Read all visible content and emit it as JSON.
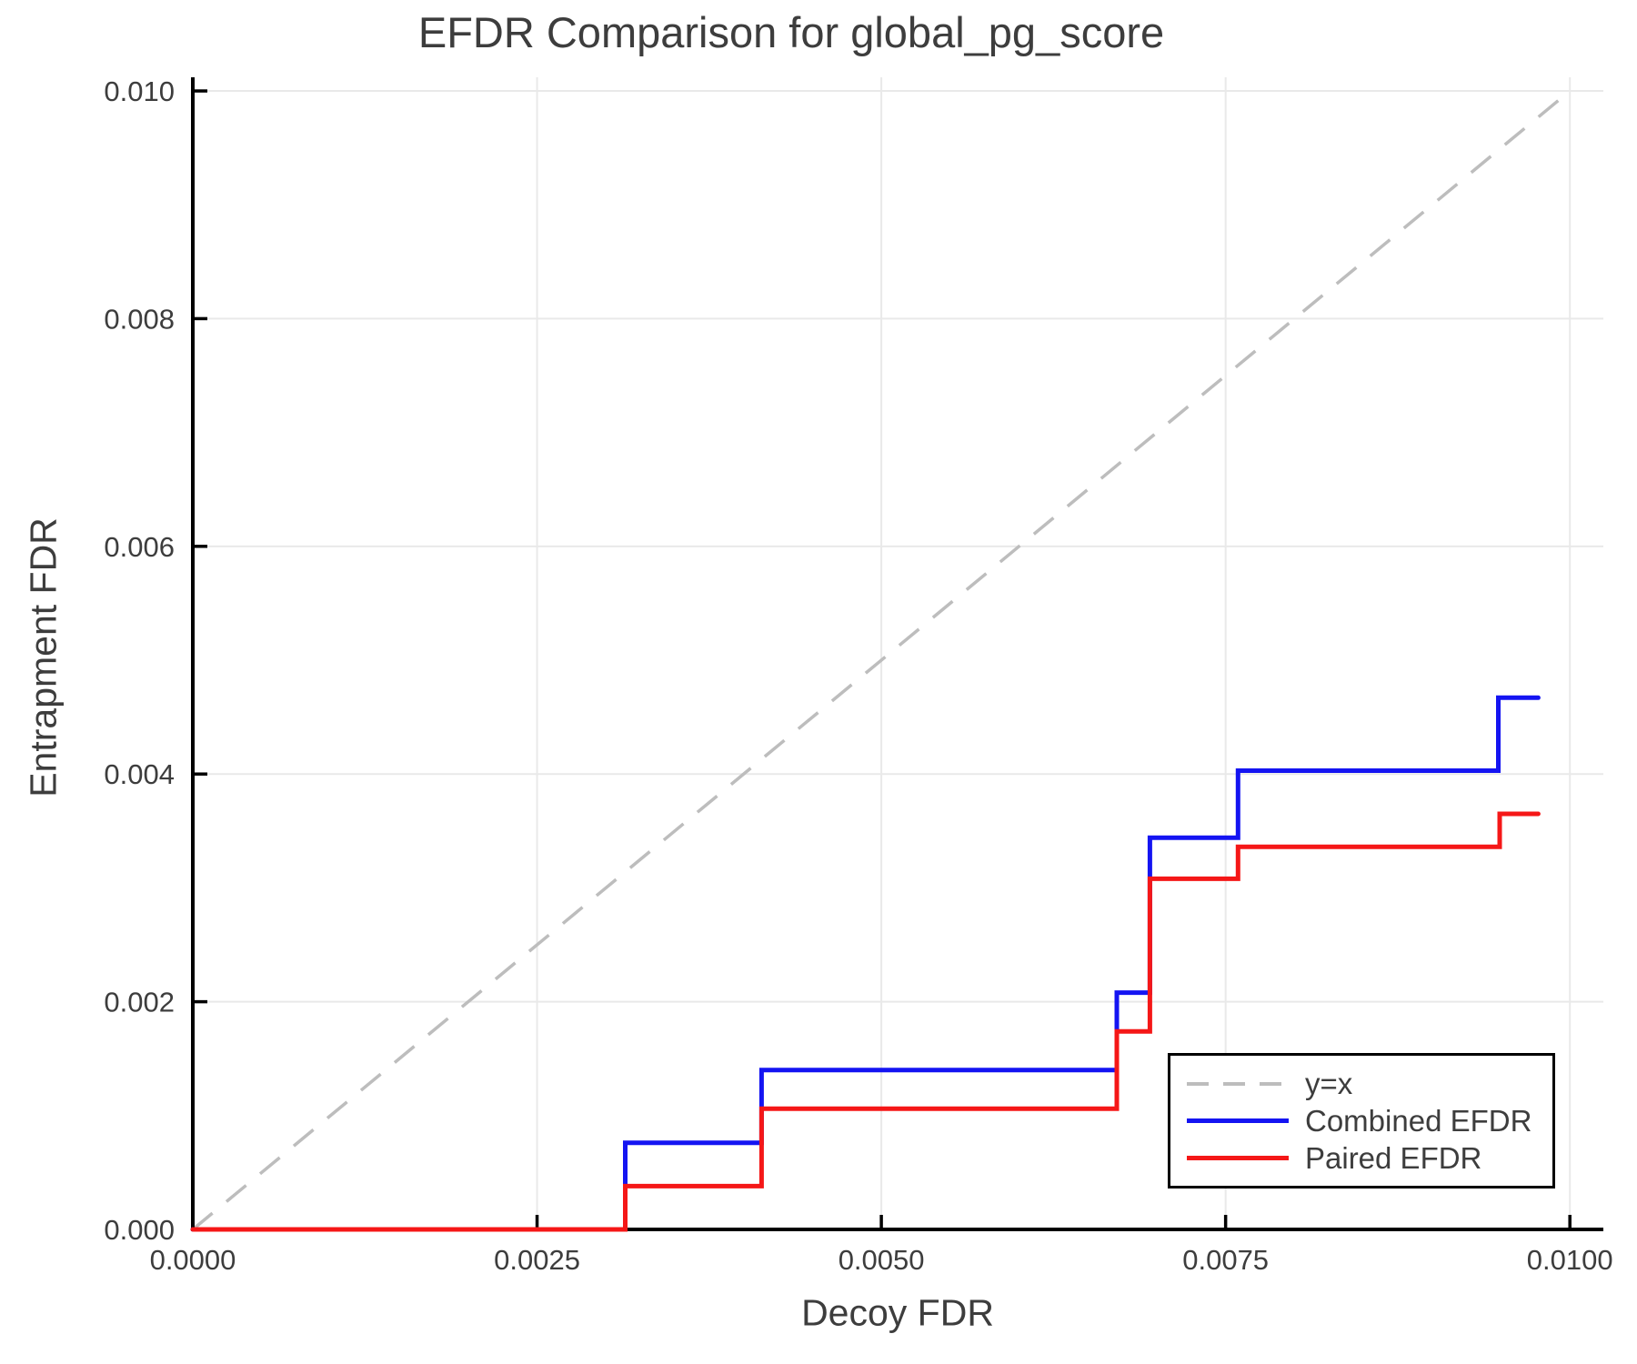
{
  "chart_data": {
    "type": "line",
    "subtype": "step-post",
    "title": "EFDR Comparison for global_pg_score",
    "xlabel": "Decoy FDR",
    "ylabel": "Entrapment FDR",
    "xlim": [
      0.0,
      0.01
    ],
    "ylim": [
      0.0,
      0.01
    ],
    "grid": true,
    "x_ticks": {
      "values": [
        0.0,
        0.0025,
        0.005,
        0.0075,
        0.01
      ],
      "labels": [
        "0.0000",
        "0.0025",
        "0.0050",
        "0.0075",
        "0.0100"
      ]
    },
    "y_ticks": {
      "values": [
        0.0,
        0.002,
        0.004,
        0.006,
        0.008,
        0.01
      ],
      "labels": [
        "0.000",
        "0.002",
        "0.004",
        "0.006",
        "0.008",
        "0.010"
      ]
    },
    "reference_line": {
      "label": "y=x",
      "points": [
        [
          0.0,
          0.0
        ],
        [
          0.01,
          0.01
        ]
      ],
      "style": "dashed",
      "color": "#bdbdbd"
    },
    "series": [
      {
        "name": "Combined EFDR",
        "color": "#1414f2",
        "step": "post",
        "points": [
          [
            0.0,
            0.0
          ],
          [
            0.00314,
            0.00076
          ],
          [
            0.00413,
            0.0014
          ],
          [
            0.00671,
            0.00208
          ],
          [
            0.00695,
            0.00344
          ],
          [
            0.00759,
            0.00403
          ],
          [
            0.00948,
            0.00467
          ],
          [
            0.00977,
            0.00467
          ]
        ]
      },
      {
        "name": "Paired EFDR",
        "color": "#f51717",
        "step": "post",
        "points": [
          [
            0.0,
            0.0
          ],
          [
            0.00314,
            0.00038
          ],
          [
            0.00413,
            0.00106
          ],
          [
            0.00671,
            0.00174
          ],
          [
            0.00695,
            0.00308
          ],
          [
            0.00759,
            0.00336
          ],
          [
            0.00949,
            0.00365
          ],
          [
            0.00977,
            0.00365
          ]
        ]
      }
    ],
    "legend": {
      "position": "lower right",
      "entries": [
        "y=x",
        "Combined EFDR",
        "Paired EFDR"
      ]
    },
    "style": {
      "grid_color": "#e9e9e9",
      "spine_color": "#000000",
      "text_color": "#3d3d3d",
      "tick_direction": "in"
    }
  }
}
